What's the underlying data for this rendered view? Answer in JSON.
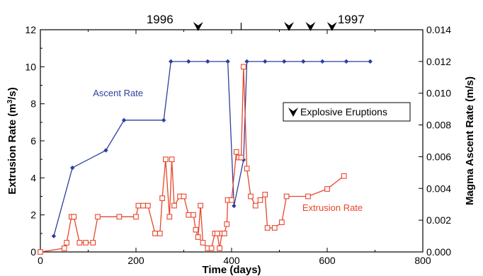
{
  "chart_data": {
    "type": "line",
    "xlabel": "Time (days)",
    "ylabel_left": "Extrusion Rate (m³/s)",
    "ylabel_left_parts": [
      "Extrusion Rate (m",
      "3",
      "/s)"
    ],
    "ylabel_right": "Magma Ascent Rate  (m/s)",
    "xlim": [
      0,
      800
    ],
    "ylim_left": [
      0,
      12
    ],
    "ylim_right": [
      0,
      0.014
    ],
    "x_ticks": [
      0,
      200,
      400,
      600,
      800
    ],
    "y_ticks_left": [
      0,
      2,
      4,
      6,
      8,
      10,
      12
    ],
    "y_ticks_right": [
      "0.000",
      "0.002",
      "0.004",
      "0.006",
      "0.008",
      "0.010",
      "0.012",
      "0.014"
    ],
    "year_labels": [
      {
        "label": "1996",
        "x": 250
      },
      {
        "label": "1997",
        "x": 650
      }
    ],
    "year_divider_x": 420,
    "series": [
      {
        "name": "Ascent Rate",
        "axis": "right",
        "color": "#2b3f9e",
        "marker": "diamond",
        "x": [
          28,
          67,
          137,
          175,
          258,
          273,
          310,
          350,
          392,
          405,
          425,
          432,
          470,
          510,
          550,
          590,
          640,
          690
        ],
        "y": [
          0.001,
          0.0053,
          0.0064,
          0.0083,
          0.0083,
          0.012,
          0.012,
          0.012,
          0.012,
          0.0029,
          0.0058,
          0.012,
          0.012,
          0.012,
          0.012,
          0.012,
          0.012,
          0.012
        ]
      },
      {
        "name": "Extrusion Rate",
        "axis": "left",
        "color": "#e8452b",
        "marker": "open-square",
        "x": [
          0,
          50,
          55,
          65,
          70,
          82,
          95,
          110,
          120,
          165,
          200,
          205,
          215,
          225,
          240,
          250,
          255,
          262,
          270,
          275,
          280,
          292,
          300,
          310,
          320,
          325,
          330,
          335,
          340,
          350,
          358,
          365,
          370,
          375,
          380,
          385,
          390,
          392,
          400,
          410,
          415,
          420,
          425,
          432,
          440,
          450,
          460,
          470,
          475,
          490,
          505,
          515,
          560,
          600,
          635
        ],
        "y": [
          0,
          0.2,
          0.5,
          1.9,
          1.9,
          0.5,
          0.5,
          0.5,
          1.9,
          1.9,
          1.9,
          2.5,
          2.5,
          2.5,
          1.0,
          1.0,
          2.9,
          5.0,
          1.9,
          5.0,
          2.5,
          3.0,
          3.0,
          2.0,
          2.0,
          1.2,
          0.8,
          2.5,
          0.5,
          0.2,
          0.2,
          1.0,
          1.0,
          0.2,
          1.0,
          1.0,
          1.5,
          2.8,
          2.8,
          5.4,
          5.1,
          5.1,
          10.0,
          4.5,
          3.0,
          2.5,
          2.8,
          3.1,
          1.3,
          1.3,
          1.6,
          3.0,
          3.0,
          3.4,
          4.1
        ]
      }
    ],
    "series_labels": [
      {
        "text": "Ascent Rate",
        "series": 0
      },
      {
        "text": "Extrusion Rate",
        "series": 1
      }
    ],
    "eruption_markers_x": [
      330,
      520,
      565,
      610
    ],
    "eruption_marker_y": 12.0,
    "legend": {
      "text": "Explosive Eruptions",
      "placement": "right"
    }
  }
}
